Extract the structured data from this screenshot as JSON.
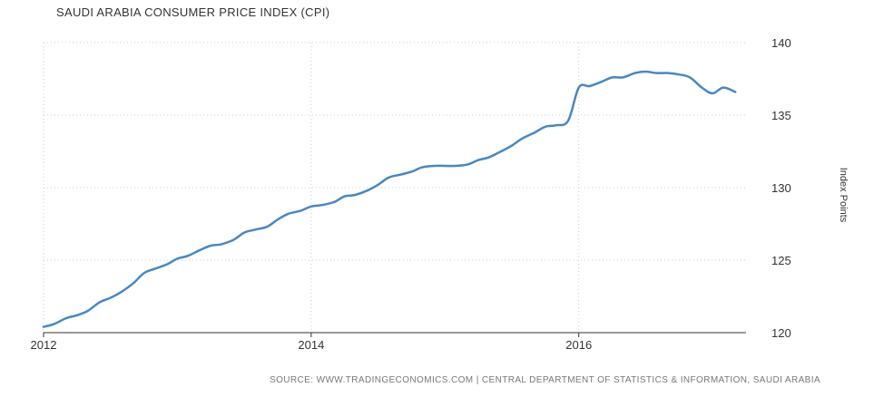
{
  "chart_data": {
    "type": "line",
    "title": "SAUDI ARABIA CONSUMER PRICE INDEX (CPI)",
    "source": "SOURCE: WWW.TRADINGECONOMICS.COM | CENTRAL DEPARTMENT OF STATISTICS & INFORMATION, SAUDI ARABIA",
    "ylabel": "Index Points",
    "xlabel": "",
    "xlim": [
      2012.0,
      2017.25
    ],
    "ylim": [
      120,
      140
    ],
    "x_ticks": [
      2012,
      2014,
      2016
    ],
    "y_ticks": [
      120,
      125,
      130,
      135,
      140
    ],
    "grid": true,
    "y_axis_side": "right",
    "series": [
      {
        "color": "#4a87c0",
        "x": [
          2012.0,
          2012.08,
          2012.17,
          2012.25,
          2012.33,
          2012.42,
          2012.5,
          2012.58,
          2012.67,
          2012.75,
          2012.83,
          2012.92,
          2013.0,
          2013.08,
          2013.17,
          2013.25,
          2013.33,
          2013.42,
          2013.5,
          2013.58,
          2013.67,
          2013.75,
          2013.83,
          2013.92,
          2014.0,
          2014.08,
          2014.17,
          2014.25,
          2014.33,
          2014.42,
          2014.5,
          2014.58,
          2014.67,
          2014.75,
          2014.83,
          2014.92,
          2015.0,
          2015.08,
          2015.17,
          2015.25,
          2015.33,
          2015.42,
          2015.5,
          2015.58,
          2015.67,
          2015.75,
          2015.83,
          2015.92,
          2016.0,
          2016.08,
          2016.17,
          2016.25,
          2016.33,
          2016.42,
          2016.5,
          2016.58,
          2016.67,
          2016.75,
          2016.83,
          2016.92,
          2017.0,
          2017.08,
          2017.17
        ],
        "values": [
          120.4,
          120.6,
          121.0,
          121.2,
          121.5,
          122.1,
          122.4,
          122.8,
          123.4,
          124.1,
          124.4,
          124.7,
          125.1,
          125.3,
          125.7,
          126.0,
          126.1,
          126.4,
          126.9,
          127.1,
          127.3,
          127.8,
          128.2,
          128.4,
          128.7,
          128.8,
          129.0,
          129.4,
          129.5,
          129.8,
          130.2,
          130.7,
          130.9,
          131.1,
          131.4,
          131.5,
          131.5,
          131.5,
          131.6,
          131.9,
          132.1,
          132.5,
          132.9,
          133.4,
          133.8,
          134.2,
          134.3,
          134.6,
          136.9,
          137.0,
          137.3,
          137.6,
          137.6,
          137.9,
          138.0,
          137.9,
          137.9,
          137.8,
          137.6,
          136.9,
          136.5,
          136.9,
          136.6
        ]
      }
    ]
  }
}
